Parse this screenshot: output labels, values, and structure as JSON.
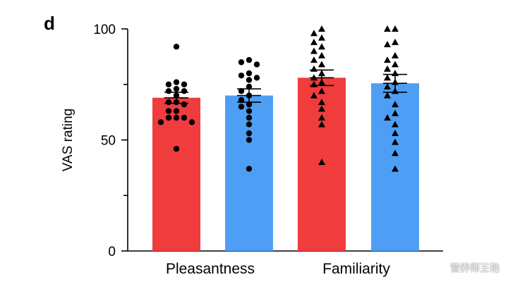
{
  "chart_data": {
    "type": "bar",
    "panel_label": "d",
    "ylabel": "VAS rating",
    "ylim": [
      0,
      100
    ],
    "yticks": [
      0,
      50,
      100
    ],
    "categories": [
      "Pleasantness",
      "Familiarity"
    ],
    "series": [
      {
        "color": "#f03c3c",
        "marker": "circle",
        "values": [
          69,
          78
        ],
        "sem": [
          2.5,
          3.5
        ],
        "points": [
          [
            92,
            76,
            75,
            75,
            73,
            72,
            72,
            70,
            67,
            67,
            66,
            63,
            63,
            60,
            60,
            60,
            58,
            58,
            46
          ],
          [
            100,
            98,
            96,
            94,
            92,
            90,
            88,
            86,
            84,
            82,
            80,
            78,
            76,
            75,
            72,
            70,
            67,
            64,
            60,
            57,
            40
          ]
        ]
      },
      {
        "color": "#4f9ef5",
        "marker": "triangle",
        "values": [
          70,
          75.5
        ],
        "sem": [
          3,
          4
        ],
        "points": [
          [
            86,
            85,
            84,
            80,
            79,
            78,
            77,
            74,
            72,
            70,
            68,
            66,
            65,
            63,
            60,
            57,
            53,
            50,
            37
          ],
          [
            100,
            100,
            94,
            93,
            88,
            86,
            84,
            82,
            80,
            78,
            76,
            74,
            72,
            70,
            66,
            62,
            60,
            57,
            53,
            49,
            44,
            37
          ]
        ]
      }
    ],
    "grid": false,
    "legend": "none"
  },
  "watermark": "营养师王艳"
}
